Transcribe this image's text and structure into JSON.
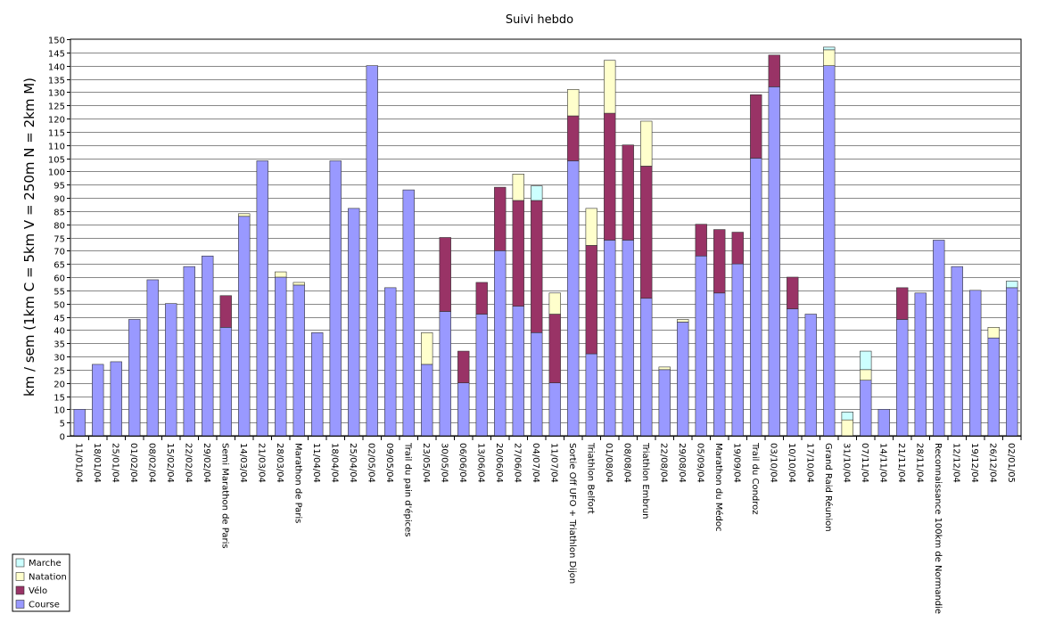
{
  "chart_data": {
    "type": "bar",
    "stacked": true,
    "title": "Suivi hebdo",
    "xlabel": "",
    "ylabel": "km / sem (1km C = 5km V = 250m N = 2km M)",
    "ylim": [
      0,
      150
    ],
    "ytick_step": 5,
    "grid": true,
    "legend_position": "bottom-left",
    "categories": [
      "11/01/04",
      "18/01/04",
      "25/01/04",
      "01/02/04",
      "08/02/04",
      "15/02/04",
      "22/02/04",
      "29/02/04",
      "Semi Marathon de Paris",
      "14/03/04",
      "21/03/04",
      "28/03/04",
      "Marathon de Paris",
      "11/04/04",
      "18/04/04",
      "25/04/04",
      "02/05/04",
      "09/05/04",
      "Trail du pain d'épices",
      "23/05/04",
      "30/05/04",
      "06/06/04",
      "13/06/04",
      "20/06/04",
      "27/06/04",
      "04/07/04",
      "11/07/04",
      "Sortie Off UFO + Triathlon Dijon",
      "Triathlon Belfort",
      "01/08/04",
      "08/08/04",
      "Triathlon Embrun",
      "22/08/04",
      "29/08/04",
      "05/09/04",
      "Marathon du Médoc",
      "19/09/04",
      "Trail du Condroz",
      "03/10/04",
      "10/10/04",
      "17/10/04",
      "Grand Raid Réunion",
      "31/10/04",
      "07/11/04",
      "14/11/04",
      "21/11/04",
      "28/11/04",
      "Reconnaissance 100km de Normandie",
      "12/12/04",
      "19/12/04",
      "26/12/04",
      "02/01/05"
    ],
    "series": [
      {
        "name": "Course",
        "color": "#9999ff",
        "values": [
          10,
          27,
          28,
          44,
          59,
          50,
          64,
          68,
          41,
          83,
          104,
          60,
          57,
          39,
          104,
          86,
          140,
          56,
          93,
          27,
          47,
          20,
          46,
          70,
          49,
          39,
          20,
          104,
          31,
          74,
          74,
          52,
          25,
          43,
          68,
          54,
          65,
          105,
          132,
          48,
          46,
          140,
          0,
          21,
          10,
          44,
          54,
          74,
          64,
          55,
          37,
          56
        ]
      },
      {
        "name": "Vélo",
        "color": "#993366",
        "values": [
          0,
          0,
          0,
          0,
          0,
          0,
          0,
          0,
          12,
          0,
          0,
          0,
          0,
          0,
          0,
          0,
          0,
          0,
          0,
          0,
          28,
          12,
          12,
          24,
          40,
          50,
          26,
          17,
          41,
          48,
          36,
          50,
          0,
          0,
          12,
          24,
          12,
          24,
          12,
          12,
          0,
          0,
          0,
          0,
          0,
          12,
          0,
          0,
          0,
          0,
          0,
          0
        ]
      },
      {
        "name": "Natation",
        "color": "#ffffcc",
        "values": [
          0,
          0,
          0,
          0,
          0,
          0,
          0,
          0,
          0,
          1,
          0,
          2,
          1,
          0,
          0,
          0,
          0,
          0,
          0,
          12,
          0,
          0,
          0,
          0,
          10,
          0,
          8,
          10,
          14,
          20,
          0,
          17,
          1,
          1,
          0,
          0,
          0,
          0,
          0,
          0,
          0,
          6,
          6,
          4,
          0,
          0,
          0,
          0,
          0,
          0,
          4,
          0
        ]
      },
      {
        "name": "Marche",
        "color": "#ccffff",
        "values": [
          0,
          0,
          0,
          0,
          0,
          0,
          0,
          0,
          0,
          0,
          0,
          0,
          0,
          0,
          0,
          0,
          0,
          0,
          0,
          0,
          0,
          0,
          0,
          0,
          0,
          5.5,
          0,
          0,
          0,
          0,
          0,
          0,
          0,
          0,
          0,
          0,
          0,
          0,
          0,
          0,
          0,
          1,
          3,
          7,
          0,
          0,
          0,
          0,
          0,
          0,
          0,
          2.5
        ]
      }
    ]
  }
}
